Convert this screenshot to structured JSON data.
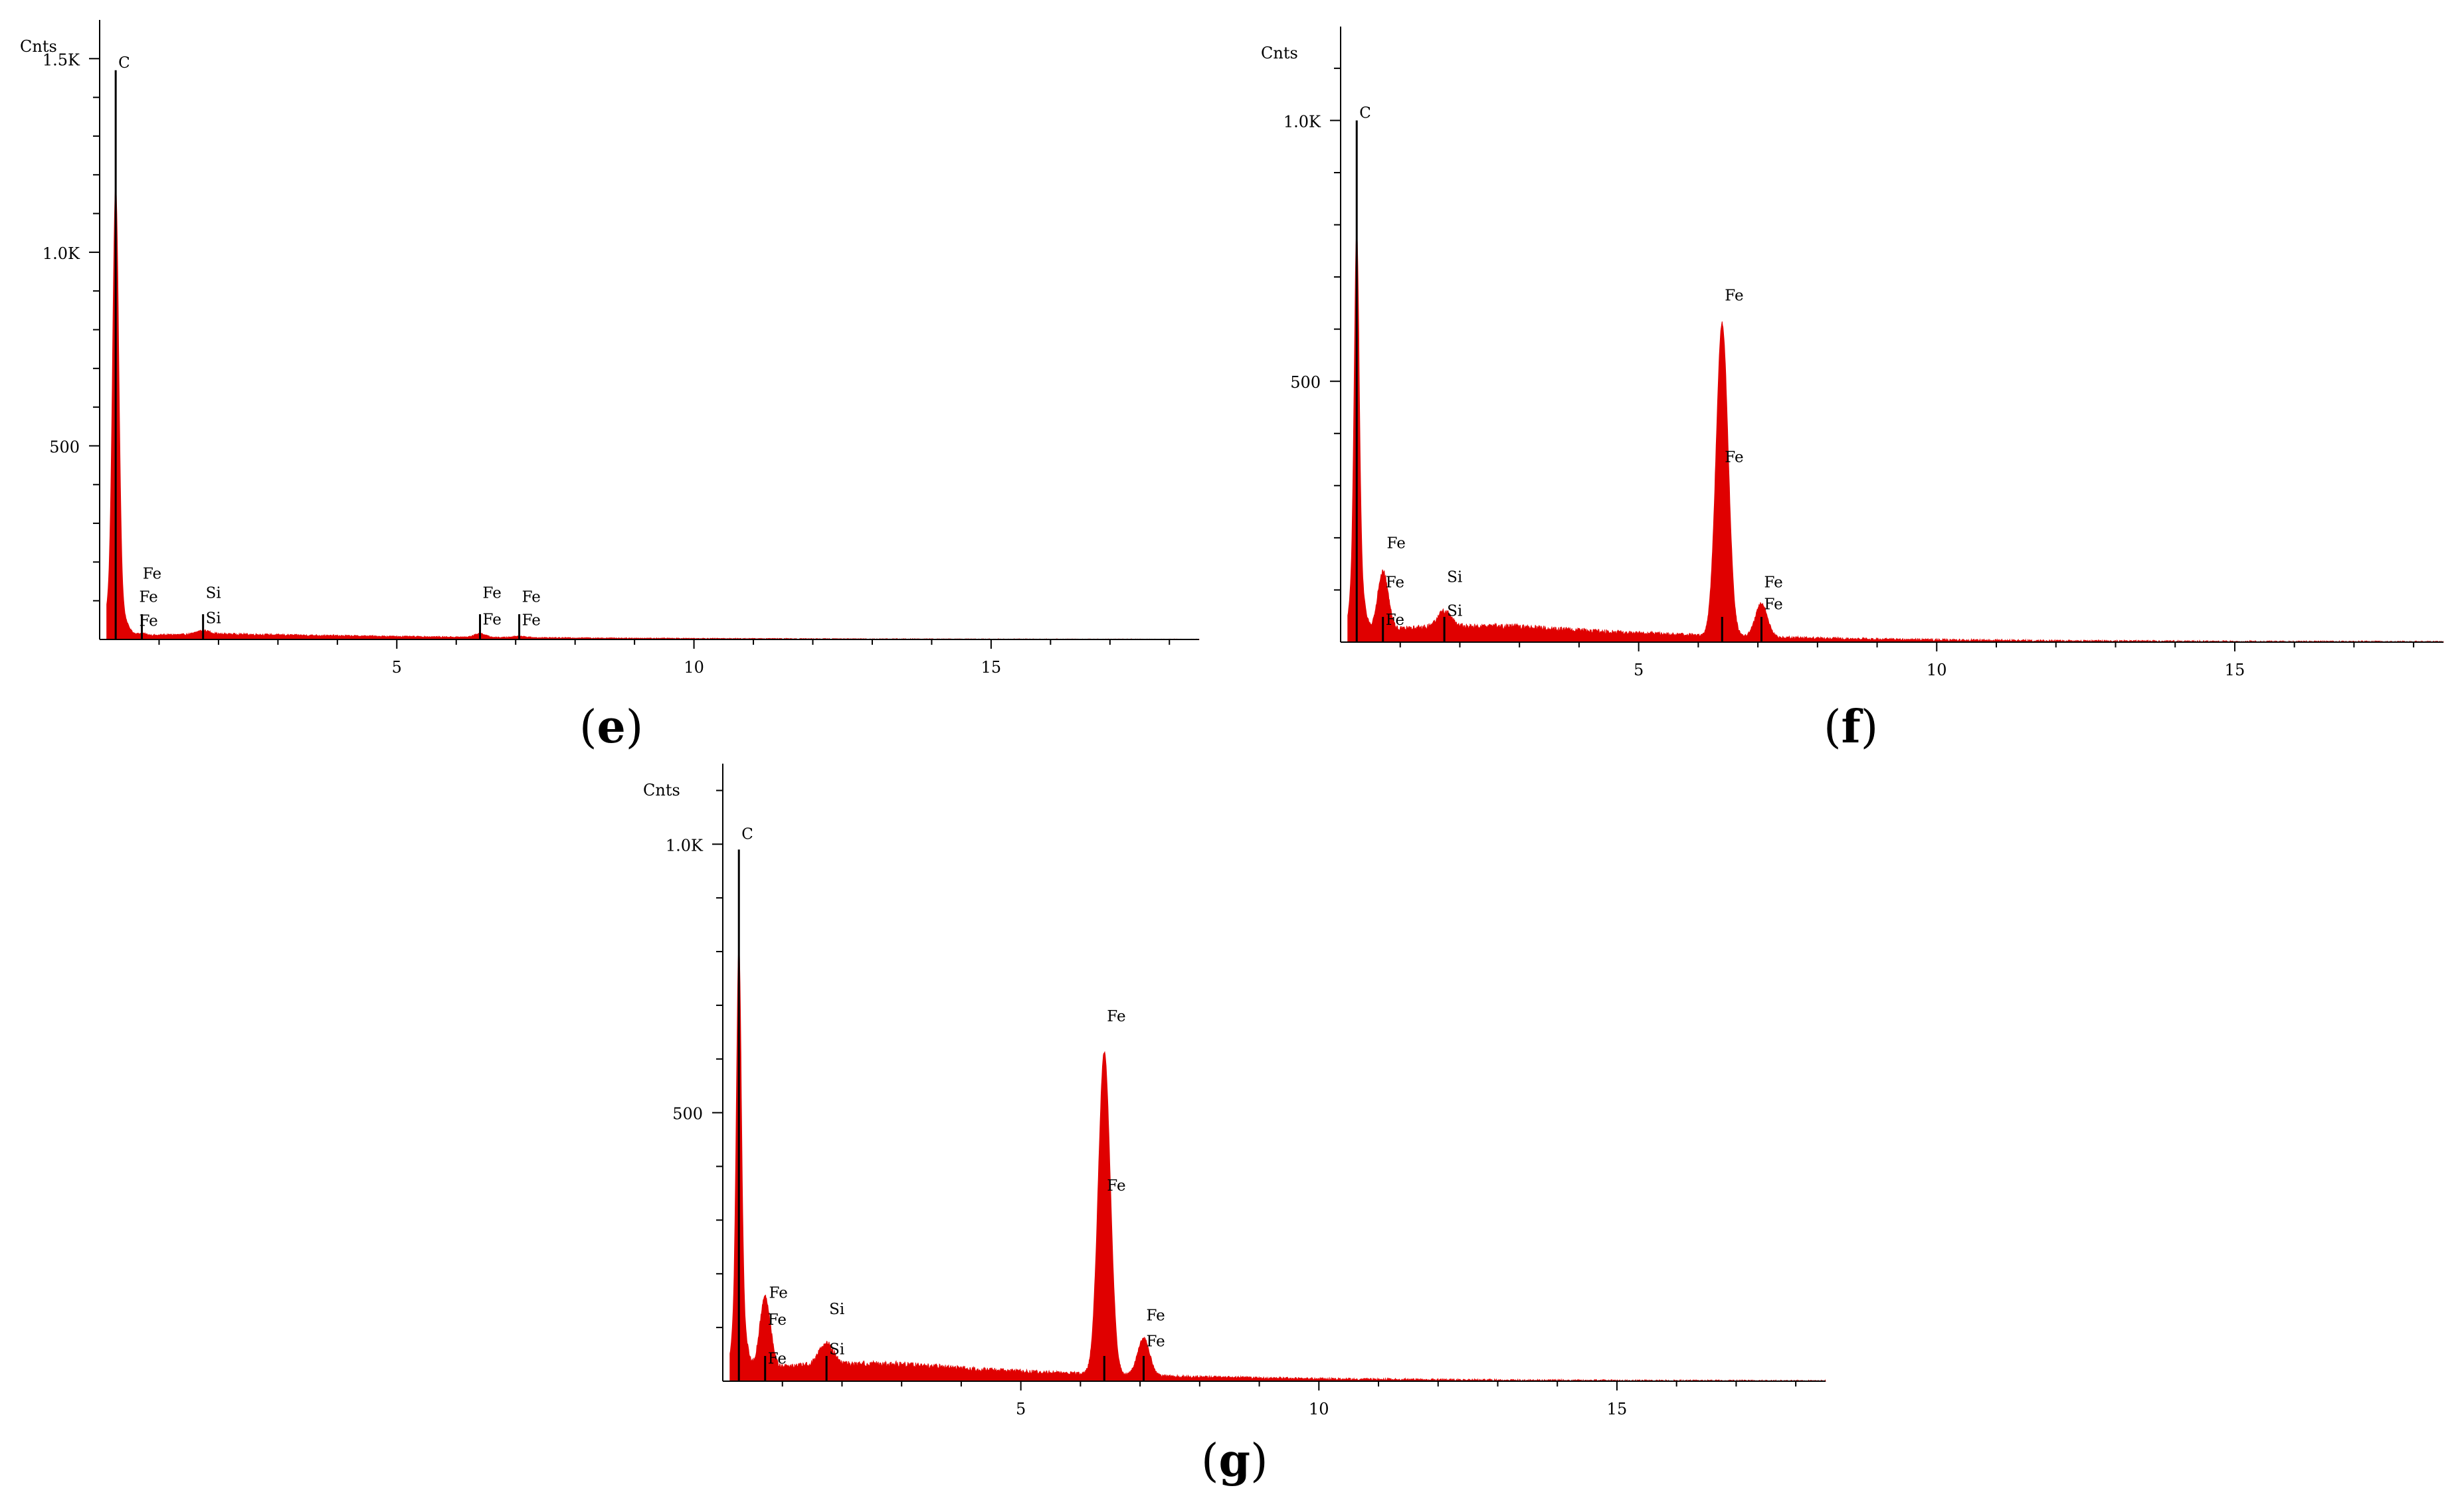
{
  "chart_data": [
    {
      "type": "area",
      "panel_label": "e",
      "ylabel": "Cnts",
      "xlabel": "",
      "xlim": [
        0,
        18.5
      ],
      "ylim": [
        0,
        1600
      ],
      "x_ticks": [
        5,
        10,
        15
      ],
      "y_ticks": [
        {
          "value": 500,
          "label": "500"
        },
        {
          "value": 1000,
          "label": "1.0K"
        },
        {
          "value": 1500,
          "label": "1.5K"
        }
      ],
      "color": "#e00000",
      "grid": false,
      "peaks": [
        {
          "x": 0.27,
          "y": 1050,
          "width": 0.05
        },
        {
          "x": 0.25,
          "y": 120,
          "width": 0.14
        },
        {
          "x": 0.71,
          "y": 6,
          "width": 0.08
        },
        {
          "x": 1.74,
          "y": 10,
          "width": 0.11
        },
        {
          "x": 6.4,
          "y": 10,
          "width": 0.09
        },
        {
          "x": 7.06,
          "y": 4,
          "width": 0.1
        }
      ],
      "background": {
        "level": 14,
        "rise": 0.6,
        "center": 2.2,
        "spread": 1.6,
        "decay": 0.22,
        "noise": 4
      },
      "element_lines": [
        {
          "element": "C",
          "x": 0.27,
          "y": 1470
        },
        {
          "element": "Fe",
          "x": 0.71,
          "y": 0
        },
        {
          "element": "Si",
          "x": 1.74,
          "y": 0
        },
        {
          "element": "Fe",
          "x": 6.4,
          "y": 0
        },
        {
          "element": "Fe",
          "x": 7.06,
          "y": 0
        }
      ],
      "peak_labels": [
        {
          "text": "C",
          "x": 0.27,
          "y": 1470
        },
        {
          "text": "Fe",
          "x": 0.68,
          "y": 150
        },
        {
          "text": "Fe",
          "x": 0.62,
          "y": 90
        },
        {
          "text": "Fe",
          "x": 0.62,
          "y": 28
        },
        {
          "text": "Si",
          "x": 1.74,
          "y": 100
        },
        {
          "text": "Si",
          "x": 1.74,
          "y": 35
        },
        {
          "text": "Fe",
          "x": 6.4,
          "y": 100
        },
        {
          "text": "Fe",
          "x": 6.4,
          "y": 32
        },
        {
          "text": "Fe",
          "x": 7.06,
          "y": 90
        },
        {
          "text": "Fe",
          "x": 7.06,
          "y": 30
        }
      ]
    },
    {
      "type": "area",
      "panel_label": "f",
      "ylabel": "Cnts",
      "xlabel": "",
      "xlim": [
        0,
        18.5
      ],
      "ylim": [
        0,
        1180
      ],
      "x_ticks": [
        5,
        10,
        15
      ],
      "y_ticks": [
        {
          "value": 500,
          "label": "500"
        },
        {
          "value": 1000,
          "label": "1.0K"
        }
      ],
      "color": "#e00000",
      "grid": false,
      "peaks": [
        {
          "x": 0.27,
          "y": 630,
          "width": 0.04
        },
        {
          "x": 0.27,
          "y": 150,
          "width": 0.1
        },
        {
          "x": 0.71,
          "y": 115,
          "width": 0.09
        },
        {
          "x": 1.74,
          "y": 30,
          "width": 0.12
        },
        {
          "x": 6.4,
          "y": 600,
          "width": 0.1
        },
        {
          "x": 7.06,
          "y": 65,
          "width": 0.1
        }
      ],
      "background": {
        "level": 30,
        "rise": 0.5,
        "center": 3.0,
        "spread": 2.0,
        "decay": 0.28,
        "noise": 8
      },
      "element_lines": [
        {
          "element": "C",
          "x": 0.27,
          "y": 1000
        },
        {
          "element": "Fe",
          "x": 0.71,
          "y": 0
        },
        {
          "element": "Si",
          "x": 1.74,
          "y": 0
        },
        {
          "element": "Fe",
          "x": 6.4,
          "y": 0
        },
        {
          "element": "Fe",
          "x": 7.06,
          "y": 0
        }
      ],
      "peak_labels": [
        {
          "text": "C",
          "x": 0.27,
          "y": 1000
        },
        {
          "text": "Fe",
          "x": 0.73,
          "y": 175
        },
        {
          "text": "Fe",
          "x": 0.71,
          "y": 100
        },
        {
          "text": "Fe",
          "x": 0.71,
          "y": 28
        },
        {
          "text": "Si",
          "x": 1.74,
          "y": 110
        },
        {
          "text": "Si",
          "x": 1.74,
          "y": 45
        },
        {
          "text": "Fe",
          "x": 6.4,
          "y": 650
        },
        {
          "text": "Fe",
          "x": 6.4,
          "y": 340
        },
        {
          "text": "Fe",
          "x": 7.06,
          "y": 100
        },
        {
          "text": "Fe",
          "x": 7.06,
          "y": 58
        }
      ]
    },
    {
      "type": "area",
      "panel_label": "g",
      "ylabel": "Cnts",
      "xlabel": "",
      "xlim": [
        0,
        18.5
      ],
      "ylim": [
        0,
        1150
      ],
      "x_ticks": [
        5,
        10,
        15
      ],
      "y_ticks": [
        {
          "value": 500,
          "label": "500"
        },
        {
          "value": 1000,
          "label": "1.0K"
        }
      ],
      "color": "#e00000",
      "grid": false,
      "peaks": [
        {
          "x": 0.27,
          "y": 650,
          "width": 0.04
        },
        {
          "x": 0.27,
          "y": 150,
          "width": 0.1
        },
        {
          "x": 0.71,
          "y": 135,
          "width": 0.09
        },
        {
          "x": 1.74,
          "y": 40,
          "width": 0.12
        },
        {
          "x": 6.4,
          "y": 600,
          "width": 0.1
        },
        {
          "x": 7.06,
          "y": 70,
          "width": 0.1
        }
      ],
      "background": {
        "level": 32,
        "rise": 0.5,
        "center": 3.0,
        "spread": 2.0,
        "decay": 0.28,
        "noise": 8
      },
      "element_lines": [
        {
          "element": "C",
          "x": 0.27,
          "y": 990
        },
        {
          "element": "Fe",
          "x": 0.71,
          "y": 0
        },
        {
          "element": "Si",
          "x": 1.74,
          "y": 0
        },
        {
          "element": "Fe",
          "x": 6.4,
          "y": 0
        },
        {
          "element": "Fe",
          "x": 7.06,
          "y": 0
        }
      ],
      "peak_labels": [
        {
          "text": "C",
          "x": 0.27,
          "y": 1005
        },
        {
          "text": "Fe",
          "x": 0.73,
          "y": 150
        },
        {
          "text": "Fe",
          "x": 0.71,
          "y": 100
        },
        {
          "text": "Fe",
          "x": 0.71,
          "y": 28
        },
        {
          "text": "Si",
          "x": 1.74,
          "y": 120
        },
        {
          "text": "Si",
          "x": 1.74,
          "y": 45
        },
        {
          "text": "Fe",
          "x": 6.4,
          "y": 665
        },
        {
          "text": "Fe",
          "x": 6.4,
          "y": 350
        },
        {
          "text": "Fe",
          "x": 7.06,
          "y": 108
        },
        {
          "text": "Fe",
          "x": 7.06,
          "y": 60
        }
      ]
    }
  ]
}
